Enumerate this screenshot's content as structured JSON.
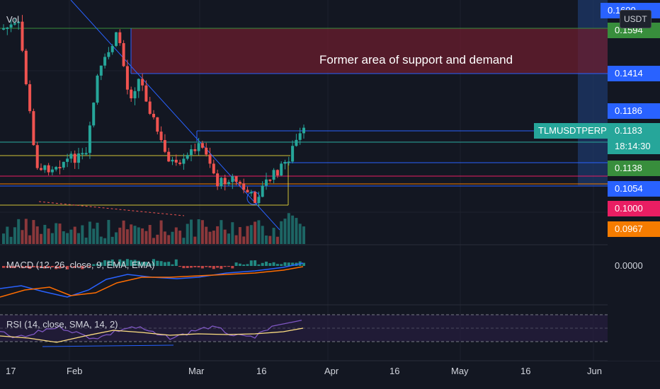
{
  "symbol_tag": "TLMUSDTPERP",
  "currency_button": "USDT",
  "annotation_text": "Former area of support and demand",
  "panes": {
    "volume_title": "Vol",
    "macd_title": "MACD (12, 26, close, 9, EMA, EMA)",
    "rsi_title": "RSI (14, close, SMA, 14, 2)"
  },
  "price_labels": [
    {
      "text": "0.1600",
      "color": "#2962ff"
    },
    {
      "text": "0.1594",
      "color": "#388e3c"
    },
    {
      "text": "0.1414",
      "color": "#2962ff"
    },
    {
      "text": "0.1186",
      "color": "#2962ff"
    },
    {
      "text": "0.1183",
      "color": "#26a69a"
    },
    {
      "text": "18:14:30",
      "color": "#26a69a"
    },
    {
      "text": "0.1138",
      "color": "#388e3c"
    },
    {
      "text": "0.1054",
      "color": "#2962ff"
    },
    {
      "text": "0.1000",
      "color": "#e91e63"
    },
    {
      "text": "0.0967",
      "color": "#f57c00"
    }
  ],
  "macd_value": "0.0000",
  "time_axis": [
    "17",
    "Feb",
    "Mar",
    "16",
    "Apr",
    "16",
    "May",
    "16",
    "Jun"
  ],
  "colors": {
    "up": "#26a69a",
    "down": "#ef5350",
    "macd": "#2962ff",
    "signal": "#ff6d00",
    "rsi": "#7e57c2",
    "rsi_ma": "#ffeb3b"
  }
}
